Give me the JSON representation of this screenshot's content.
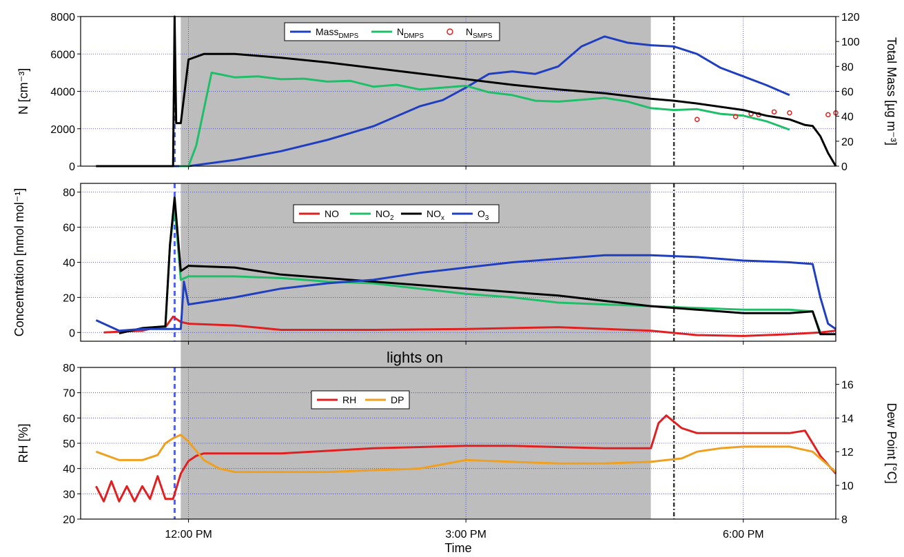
{
  "chart_data": [
    {
      "type": "line",
      "panel": "aerosol",
      "ylabel": "N [cm⁻³]",
      "y2label": "Total Mass [µg m⁻³]",
      "ylim": [
        0,
        8000
      ],
      "y2lim": [
        0,
        120
      ],
      "yticks": [
        0,
        2000,
        4000,
        6000,
        8000
      ],
      "y2ticks": [
        0,
        20,
        40,
        60,
        80,
        100,
        120
      ],
      "legend": [
        "Mass_DMPS",
        "N_DMPS",
        "N_SMPS"
      ],
      "legend_position": "top-center",
      "grid": true,
      "series": [
        {
          "name": "Mass_DMPS",
          "color": "#1f3fbf",
          "axis": "right",
          "x": [
            "11:00",
            "11:54",
            "12:00",
            "12:30",
            "13:00",
            "13:30",
            "14:00",
            "14:30",
            "14:45",
            "15:00",
            "15:15",
            "15:30",
            "15:45",
            "16:00",
            "16:15",
            "16:30",
            "16:45",
            "17:00",
            "17:15",
            "17:30",
            "17:45",
            "18:00",
            "18:15",
            "18:30"
          ],
          "values": [
            0,
            0,
            0,
            5,
            12,
            21,
            32,
            48,
            53,
            63,
            74,
            76,
            74,
            80,
            96,
            104,
            99,
            97,
            96,
            90,
            79,
            72,
            65,
            57
          ]
        },
        {
          "name": "N_DMPS",
          "color": "#1fbf6a",
          "axis": "left",
          "x": [
            "11:54",
            "12:00",
            "12:05",
            "12:15",
            "12:30",
            "12:45",
            "13:00",
            "13:15",
            "13:30",
            "13:45",
            "14:00",
            "14:15",
            "14:30",
            "14:45",
            "15:00",
            "15:15",
            "15:30",
            "15:45",
            "16:00",
            "16:15",
            "16:30",
            "16:45",
            "17:00",
            "17:15",
            "17:30",
            "17:45",
            "18:00",
            "18:15",
            "18:30"
          ],
          "values": [
            0,
            0,
            1100,
            5000,
            4750,
            4800,
            4650,
            4680,
            4520,
            4560,
            4250,
            4350,
            4100,
            4200,
            4300,
            3950,
            3800,
            3500,
            3450,
            3550,
            3650,
            3450,
            3100,
            3000,
            3050,
            2800,
            2700,
            2400,
            1950
          ]
        },
        {
          "name": "N_SMPS",
          "color": "#e02020",
          "axis": "left",
          "marker": "circle",
          "x": [
            "17:30",
            "17:55",
            "18:05",
            "18:10",
            "18:20",
            "18:30",
            "18:55",
            "19:00"
          ],
          "values": [
            2500,
            2650,
            2800,
            2750,
            2900,
            2850,
            2750,
            2850
          ]
        },
        {
          "name": "N",
          "color": "#000000",
          "axis": "left",
          "x": [
            "11:00",
            "11:50",
            "11:51",
            "11:52",
            "11:55",
            "12:00",
            "12:10",
            "12:30",
            "13:00",
            "13:30",
            "14:00",
            "14:30",
            "15:00",
            "15:30",
            "16:00",
            "16:30",
            "17:00",
            "17:15",
            "17:30",
            "18:00",
            "18:15",
            "18:30",
            "18:40",
            "18:45",
            "18:50",
            "18:55",
            "19:00"
          ],
          "values": [
            0,
            0,
            8000,
            2300,
            2300,
            5700,
            6000,
            6000,
            5800,
            5550,
            5250,
            4950,
            4650,
            4350,
            4100,
            3900,
            3600,
            3500,
            3350,
            3000,
            2700,
            2500,
            2200,
            2150,
            1600,
            700,
            0
          ]
        }
      ]
    },
    {
      "type": "line",
      "panel": "gases",
      "ylabel": "Concentration [nmol mol⁻¹]",
      "ylim": [
        -5,
        85
      ],
      "yticks": [
        0,
        20,
        40,
        60,
        80
      ],
      "legend": [
        "NO",
        "NO2",
        "NOx",
        "O3"
      ],
      "legend_position": "center",
      "grid": true,
      "series": [
        {
          "name": "NO",
          "color": "#e02020",
          "x": [
            "11:05",
            "11:30",
            "11:40",
            "11:45",
            "11:50",
            "11:55",
            "12:00",
            "12:30",
            "13:00",
            "14:00",
            "15:00",
            "16:00",
            "17:00",
            "17:30",
            "18:00",
            "18:30",
            "18:50",
            "19:00"
          ],
          "values": [
            0,
            1,
            3,
            3,
            9,
            6,
            5,
            4,
            1.5,
            1.5,
            2,
            3,
            1,
            -1.5,
            -2,
            -1,
            0,
            1
          ]
        },
        {
          "name": "NO2",
          "color": "#1fbf6a",
          "x": [
            "11:30",
            "11:45",
            "11:48",
            "11:51",
            "11:55",
            "12:00",
            "12:30",
            "13:00",
            "13:30",
            "14:00",
            "14:30",
            "15:00",
            "15:30",
            "16:00",
            "16:30",
            "17:00",
            "17:30",
            "18:00",
            "18:30",
            "18:45",
            "18:50"
          ],
          "values": [
            2,
            2.5,
            50,
            72,
            30,
            32,
            32,
            31,
            29,
            28,
            25,
            22,
            20,
            17,
            16,
            15,
            14,
            13,
            13,
            12,
            0
          ]
        },
        {
          "name": "NOx",
          "color": "#000000",
          "x": [
            "11:15",
            "11:30",
            "11:45",
            "11:48",
            "11:51",
            "11:55",
            "12:00",
            "12:30",
            "13:00",
            "13:30",
            "14:00",
            "14:30",
            "15:00",
            "15:30",
            "16:00",
            "16:30",
            "17:00",
            "17:30",
            "18:00",
            "18:30",
            "18:45",
            "18:50",
            "19:00"
          ],
          "values": [
            -0.5,
            2.5,
            3.5,
            50,
            77,
            35,
            38,
            37,
            33,
            31,
            29,
            27,
            25,
            23,
            21,
            18,
            15,
            13,
            11,
            11,
            12,
            -1,
            -1
          ]
        },
        {
          "name": "O3",
          "color": "#1f3fbf",
          "x": [
            "11:00",
            "11:15",
            "11:30",
            "11:45",
            "11:55",
            "11:57",
            "12:00",
            "12:30",
            "13:00",
            "13:30",
            "14:00",
            "14:30",
            "15:00",
            "15:30",
            "16:00",
            "16:30",
            "17:00",
            "17:30",
            "18:00",
            "18:30",
            "18:45",
            "18:50",
            "18:55",
            "19:00"
          ],
          "values": [
            7,
            1,
            2,
            2,
            2,
            29,
            16,
            20,
            25,
            28,
            30,
            34,
            37,
            40,
            42,
            44,
            44,
            43,
            41,
            40,
            39,
            20,
            5,
            2
          ]
        }
      ]
    },
    {
      "type": "line",
      "panel": "humidity",
      "ylabel": "RH [%]",
      "y2label": "Dew Point [°C]",
      "ylim": [
        20,
        80
      ],
      "y2lim": [
        8,
        17
      ],
      "yticks": [
        20,
        30,
        40,
        50,
        60,
        70,
        80
      ],
      "y2ticks": [
        8,
        10,
        12,
        14,
        16
      ],
      "xlabel": "Time",
      "xticks": [
        "12:00 PM",
        "3:00 PM",
        "6:00 PM"
      ],
      "legend": [
        "RH",
        "DP"
      ],
      "legend_position": "top-left",
      "grid": true,
      "series": [
        {
          "name": "RH",
          "color": "#e02020",
          "axis": "left",
          "x": [
            "11:00",
            "11:05",
            "11:10",
            "11:15",
            "11:20",
            "11:25",
            "11:30",
            "11:35",
            "11:40",
            "11:45",
            "11:50",
            "11:55",
            "12:00",
            "12:05",
            "12:10",
            "12:30",
            "13:00",
            "13:30",
            "14:00",
            "14:30",
            "15:00",
            "15:30",
            "16:00",
            "16:30",
            "17:00",
            "17:05",
            "17:10",
            "17:20",
            "17:30",
            "18:00",
            "18:30",
            "18:40",
            "18:50",
            "19:00"
          ],
          "values": [
            33,
            27,
            35,
            27,
            33,
            27,
            33,
            28,
            37,
            28,
            28,
            38,
            43,
            45,
            46,
            46,
            46,
            47,
            48,
            48.5,
            49,
            49,
            48.5,
            48,
            48,
            58,
            61,
            56,
            54,
            54,
            54,
            55,
            45,
            38
          ]
        },
        {
          "name": "DP",
          "color": "#f0a020",
          "axis": "right",
          "x": [
            "11:00",
            "11:15",
            "11:30",
            "11:40",
            "11:45",
            "11:50",
            "11:55",
            "12:00",
            "12:10",
            "12:20",
            "12:30",
            "13:00",
            "13:30",
            "14:00",
            "14:30",
            "15:00",
            "15:30",
            "16:00",
            "16:30",
            "17:00",
            "17:10",
            "17:20",
            "17:30",
            "17:45",
            "18:00",
            "18:30",
            "18:45",
            "19:00"
          ],
          "values": [
            12.0,
            11.5,
            11.5,
            11.8,
            12.5,
            12.8,
            13.0,
            12.6,
            11.5,
            11.0,
            10.8,
            10.8,
            10.8,
            10.9,
            11.0,
            11.5,
            11.4,
            11.3,
            11.3,
            11.4,
            11.5,
            11.6,
            12.0,
            12.2,
            12.3,
            12.3,
            12.0,
            10.8
          ]
        }
      ]
    }
  ],
  "annotations": {
    "shaded_region_label": "lights on",
    "shaded_region": [
      "11:55",
      "17:00"
    ],
    "lamp_on_line": "11:51",
    "event_line": "17:15"
  },
  "xrange": [
    "10:50",
    "19:00"
  ]
}
